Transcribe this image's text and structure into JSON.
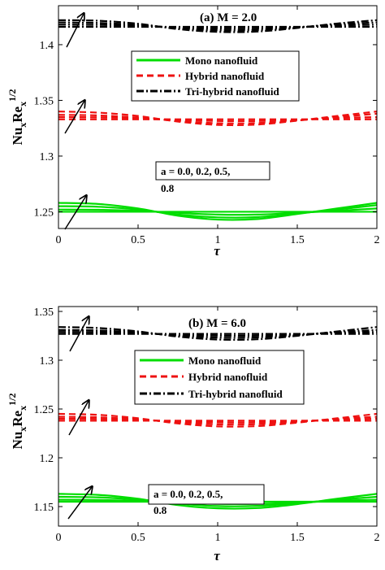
{
  "chart_data": [
    {
      "type": "line",
      "title": "(a)   M = 2.0",
      "xlabel": "τ",
      "ylabel": "Nu_x Re_x^1/2",
      "xlim": [
        0,
        2
      ],
      "ylim": [
        1.235,
        1.435
      ],
      "x_ticks": [
        0,
        0.5,
        1,
        1.5,
        2
      ],
      "x_tick_labels": [
        "0",
        "0.5",
        "1",
        "1.5",
        "2"
      ],
      "y_ticks": [
        1.25,
        1.3,
        1.35,
        1.4
      ],
      "y_tick_labels": [
        "1.25",
        "1.3",
        "1.35",
        "1.4"
      ],
      "grid": false,
      "legend_position": "center-top",
      "parameter_label": "a = 0.0, 0.2, 0.5, 0.8",
      "parameter_lines": [
        "a = 0.0, 0.2, 0.5,",
        "0.8"
      ],
      "x": [
        0,
        0.25,
        0.5,
        0.75,
        1.0,
        1.25,
        1.5,
        1.75,
        2.0
      ],
      "series": [
        {
          "name": "Mono nanofluid",
          "color": "#00dd00",
          "dash": "solid",
          "a_values": [
            0.0,
            0.2,
            0.5,
            0.8
          ],
          "curves": [
            [
              1.25,
              1.25,
              1.25,
              1.25,
              1.25,
              1.25,
              1.25,
              1.25,
              1.25
            ],
            [
              1.252,
              1.2518,
              1.2508,
              1.249,
              1.2475,
              1.2475,
              1.249,
              1.2508,
              1.253
            ],
            [
              1.255,
              1.2545,
              1.252,
              1.2475,
              1.245,
              1.2452,
              1.2485,
              1.252,
              1.256
            ],
            [
              1.258,
              1.257,
              1.253,
              1.2465,
              1.243,
              1.2435,
              1.248,
              1.253,
              1.258
            ]
          ]
        },
        {
          "name": "Hybrid nanofluid",
          "color": "#ee1111",
          "dash": "dashed",
          "a_values": [
            0.0,
            0.2,
            0.5,
            0.8
          ],
          "curves": [
            [
              1.333,
              1.333,
              1.333,
              1.333,
              1.333,
              1.333,
              1.333,
              1.333,
              1.333
            ],
            [
              1.335,
              1.3348,
              1.334,
              1.3325,
              1.3315,
              1.3315,
              1.3325,
              1.3342,
              1.335
            ],
            [
              1.337,
              1.3365,
              1.3345,
              1.3315,
              1.3295,
              1.3297,
              1.332,
              1.335,
              1.338
            ],
            [
              1.34,
              1.339,
              1.336,
              1.331,
              1.328,
              1.3283,
              1.3318,
              1.336,
              1.34
            ]
          ]
        },
        {
          "name": "Tri-hybrid nanofluid",
          "color": "#000000",
          "dash": "dashdot",
          "a_values": [
            0.0,
            0.2,
            0.5,
            0.8
          ],
          "curves": [
            [
              1.416,
              1.416,
              1.416,
              1.416,
              1.416,
              1.416,
              1.416,
              1.416,
              1.416
            ],
            [
              1.418,
              1.4178,
              1.417,
              1.4155,
              1.4145,
              1.4145,
              1.4158,
              1.4172,
              1.418
            ],
            [
              1.42,
              1.4195,
              1.4178,
              1.4148,
              1.413,
              1.4132,
              1.4155,
              1.4182,
              1.42
            ],
            [
              1.422,
              1.4215,
              1.4188,
              1.414,
              1.4115,
              1.4118,
              1.415,
              1.419,
              1.422
            ]
          ]
        }
      ]
    },
    {
      "type": "line",
      "title": "(b)   M = 6.0",
      "xlabel": "τ",
      "ylabel": "Nu_x Re_x^1/2",
      "xlim": [
        0,
        2
      ],
      "ylim": [
        1.13,
        1.355
      ],
      "x_ticks": [
        0,
        0.5,
        1,
        1.5,
        2
      ],
      "x_tick_labels": [
        "0",
        "0.5",
        "1",
        "1.5",
        "2"
      ],
      "y_ticks": [
        1.15,
        1.2,
        1.25,
        1.3,
        1.35
      ],
      "y_tick_labels": [
        "1.15",
        "1.2",
        "1.25",
        "1.3",
        "1.35"
      ],
      "grid": false,
      "legend_position": "center-top",
      "parameter_label": "a = 0.0, 0.2, 0.5, 0.8",
      "parameter_lines": [
        "a = 0.0, 0.2, 0.5,",
        "0.8"
      ],
      "x": [
        0,
        0.25,
        0.5,
        0.75,
        1.0,
        1.25,
        1.5,
        1.75,
        2.0
      ],
      "series": [
        {
          "name": "Mono nanofluid",
          "color": "#00dd00",
          "dash": "solid",
          "a_values": [
            0.0,
            0.2,
            0.5,
            0.8
          ],
          "curves": [
            [
              1.155,
              1.155,
              1.155,
              1.155,
              1.155,
              1.155,
              1.155,
              1.155,
              1.155
            ],
            [
              1.157,
              1.1568,
              1.1558,
              1.154,
              1.1528,
              1.1528,
              1.154,
              1.156,
              1.157
            ],
            [
              1.16,
              1.1595,
              1.157,
              1.153,
              1.1505,
              1.1507,
              1.1535,
              1.157,
              1.16
            ],
            [
              1.163,
              1.162,
              1.158,
              1.1515,
              1.1482,
              1.1485,
              1.1525,
              1.158,
              1.163
            ]
          ]
        },
        {
          "name": "Hybrid nanofluid",
          "color": "#ee1111",
          "dash": "dashed",
          "a_values": [
            0.0,
            0.2,
            0.5,
            0.8
          ],
          "curves": [
            [
              1.238,
              1.238,
              1.238,
              1.238,
              1.238,
              1.238,
              1.238,
              1.238,
              1.238
            ],
            [
              1.24,
              1.2398,
              1.2388,
              1.2372,
              1.2362,
              1.2362,
              1.2375,
              1.239,
              1.24
            ],
            [
              1.242,
              1.2415,
              1.2395,
              1.2362,
              1.2342,
              1.2344,
              1.2368,
              1.2398,
              1.242
            ],
            [
              1.245,
              1.244,
              1.2405,
              1.2352,
              1.2322,
              1.2325,
              1.236,
              1.2405,
              1.245
            ]
          ]
        },
        {
          "name": "Tri-hybrid nanofluid",
          "color": "#000000",
          "dash": "dashdot",
          "a_values": [
            0.0,
            0.2,
            0.5,
            0.8
          ],
          "curves": [
            [
              1.327,
              1.327,
              1.327,
              1.327,
              1.327,
              1.327,
              1.327,
              1.327,
              1.327
            ],
            [
              1.329,
              1.3288,
              1.3278,
              1.3262,
              1.3252,
              1.3252,
              1.3265,
              1.328,
              1.329
            ],
            [
              1.331,
              1.3305,
              1.3285,
              1.3252,
              1.3232,
              1.3234,
              1.3258,
              1.3288,
              1.331
            ],
            [
              1.334,
              1.333,
              1.3295,
              1.3242,
              1.3212,
              1.3215,
              1.325,
              1.3295,
              1.334
            ]
          ]
        }
      ]
    }
  ]
}
